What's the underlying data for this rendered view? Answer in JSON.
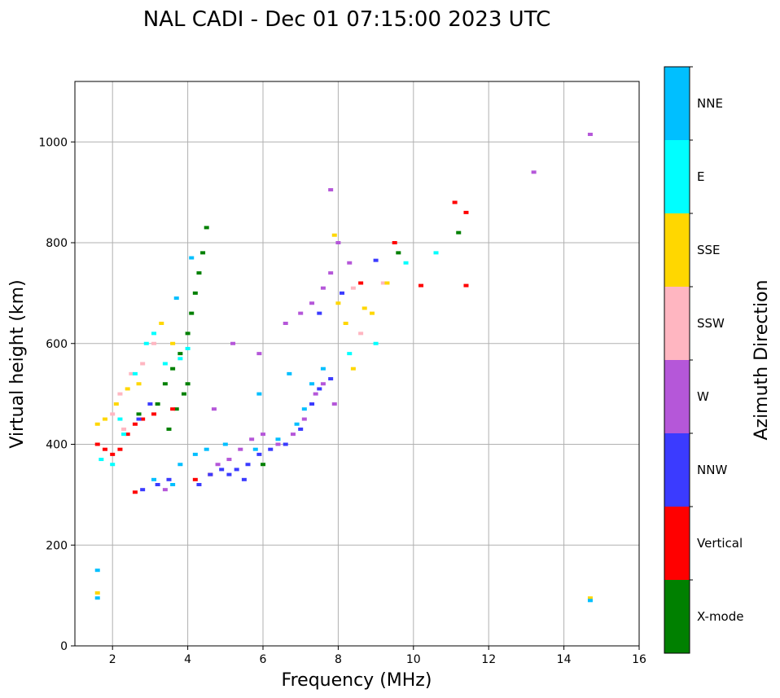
{
  "chart_data": {
    "type": "scatter",
    "title": "NAL CADI - Dec 01 07:15:00 2023 UTC",
    "xlabel": "Frequency (MHz)",
    "ylabel": "Virtual height (km)",
    "xlim": [
      1,
      16
    ],
    "ylim": [
      0,
      1120
    ],
    "x_ticks": [
      2,
      4,
      6,
      8,
      10,
      12,
      14,
      16
    ],
    "y_ticks": [
      0,
      200,
      400,
      600,
      800,
      1000
    ],
    "grid": true,
    "colorbar": {
      "title": "Azimuth Direction",
      "categories": [
        {
          "name": "X-mode",
          "color": "#008000"
        },
        {
          "name": "Vertical",
          "color": "#ff0000"
        },
        {
          "name": "NNW",
          "color": "#3b3bff"
        },
        {
          "name": "W",
          "color": "#b557d9"
        },
        {
          "name": "SSW",
          "color": "#ffb6c1"
        },
        {
          "name": "SSE",
          "color": "#ffd700"
        },
        {
          "name": "E",
          "color": "#00ffff"
        },
        {
          "name": "NNE",
          "color": "#00bfff"
        }
      ]
    },
    "series": [
      {
        "name": "X-mode",
        "points": [
          [
            3.2,
            480
          ],
          [
            3.4,
            520
          ],
          [
            3.6,
            550
          ],
          [
            3.8,
            580
          ],
          [
            3.9,
            500
          ],
          [
            4.0,
            620
          ],
          [
            4.1,
            660
          ],
          [
            4.2,
            700
          ],
          [
            4.3,
            740
          ],
          [
            4.4,
            780
          ],
          [
            3.5,
            430
          ],
          [
            3.7,
            470
          ],
          [
            4.0,
            520
          ],
          [
            4.5,
            830
          ],
          [
            6.0,
            360
          ],
          [
            9.6,
            780
          ],
          [
            11.2,
            820
          ],
          [
            2.7,
            460
          ]
        ]
      },
      {
        "name": "Vertical",
        "points": [
          [
            1.6,
            400
          ],
          [
            1.8,
            390
          ],
          [
            2.0,
            380
          ],
          [
            2.2,
            390
          ],
          [
            2.4,
            420
          ],
          [
            2.6,
            440
          ],
          [
            2.8,
            450
          ],
          [
            3.1,
            460
          ],
          [
            3.6,
            470
          ],
          [
            4.2,
            330
          ],
          [
            4.6,
            340
          ],
          [
            2.6,
            305
          ],
          [
            8.6,
            720
          ],
          [
            9.5,
            800
          ],
          [
            10.2,
            715
          ],
          [
            11.1,
            880
          ],
          [
            11.4,
            860
          ],
          [
            11.4,
            715
          ]
        ]
      },
      {
        "name": "NNW",
        "points": [
          [
            4.3,
            320
          ],
          [
            4.6,
            340
          ],
          [
            4.9,
            350
          ],
          [
            5.1,
            340
          ],
          [
            5.3,
            350
          ],
          [
            5.5,
            330
          ],
          [
            5.6,
            360
          ],
          [
            5.9,
            380
          ],
          [
            6.2,
            390
          ],
          [
            6.6,
            400
          ],
          [
            7.0,
            430
          ],
          [
            7.3,
            480
          ],
          [
            7.5,
            510
          ],
          [
            7.8,
            530
          ],
          [
            2.8,
            310
          ],
          [
            3.2,
            320
          ],
          [
            3.5,
            330
          ],
          [
            3.0,
            480
          ],
          [
            2.7,
            450
          ],
          [
            8.1,
            700
          ],
          [
            9.0,
            765
          ],
          [
            7.5,
            660
          ]
        ]
      },
      {
        "name": "W",
        "points": [
          [
            4.8,
            360
          ],
          [
            5.1,
            370
          ],
          [
            5.4,
            390
          ],
          [
            5.7,
            410
          ],
          [
            6.0,
            420
          ],
          [
            6.4,
            400
          ],
          [
            6.8,
            420
          ],
          [
            7.1,
            450
          ],
          [
            7.4,
            500
          ],
          [
            7.6,
            520
          ],
          [
            7.9,
            480
          ],
          [
            6.6,
            640
          ],
          [
            7.0,
            660
          ],
          [
            7.3,
            680
          ],
          [
            7.6,
            710
          ],
          [
            7.8,
            740
          ],
          [
            8.3,
            760
          ],
          [
            3.4,
            310
          ],
          [
            4.7,
            470
          ],
          [
            5.2,
            600
          ],
          [
            5.9,
            580
          ],
          [
            13.2,
            940
          ],
          [
            14.7,
            1015
          ],
          [
            7.8,
            905
          ],
          [
            8.0,
            800
          ]
        ]
      },
      {
        "name": "SSW",
        "points": [
          [
            2.2,
            500
          ],
          [
            2.5,
            540
          ],
          [
            2.8,
            560
          ],
          [
            3.1,
            600
          ],
          [
            2.0,
            460
          ],
          [
            2.3,
            430
          ],
          [
            8.4,
            710
          ],
          [
            9.2,
            720
          ],
          [
            8.6,
            620
          ]
        ]
      },
      {
        "name": "SSE",
        "points": [
          [
            1.6,
            440
          ],
          [
            1.8,
            450
          ],
          [
            2.1,
            480
          ],
          [
            2.4,
            510
          ],
          [
            2.7,
            520
          ],
          [
            3.3,
            640
          ],
          [
            3.6,
            600
          ],
          [
            8.0,
            680
          ],
          [
            8.2,
            640
          ],
          [
            8.7,
            670
          ],
          [
            8.9,
            660
          ],
          [
            9.3,
            720
          ],
          [
            8.4,
            550
          ],
          [
            1.6,
            105
          ],
          [
            14.7,
            95
          ],
          [
            7.9,
            815
          ]
        ]
      },
      {
        "name": "E",
        "points": [
          [
            2.2,
            450
          ],
          [
            2.6,
            540
          ],
          [
            2.9,
            600
          ],
          [
            3.1,
            620
          ],
          [
            3.4,
            560
          ],
          [
            3.8,
            570
          ],
          [
            4.0,
            590
          ],
          [
            1.7,
            370
          ],
          [
            2.0,
            360
          ],
          [
            2.3,
            420
          ],
          [
            9.0,
            600
          ],
          [
            9.8,
            760
          ],
          [
            10.6,
            780
          ],
          [
            8.3,
            580
          ]
        ]
      },
      {
        "name": "NNE",
        "points": [
          [
            3.8,
            360
          ],
          [
            4.2,
            380
          ],
          [
            4.5,
            390
          ],
          [
            5.0,
            400
          ],
          [
            5.8,
            390
          ],
          [
            6.4,
            410
          ],
          [
            6.9,
            440
          ],
          [
            7.1,
            470
          ],
          [
            7.3,
            520
          ],
          [
            7.6,
            550
          ],
          [
            3.6,
            320
          ],
          [
            3.1,
            330
          ],
          [
            1.6,
            150
          ],
          [
            1.6,
            95
          ],
          [
            4.1,
            770
          ],
          [
            3.7,
            690
          ],
          [
            6.7,
            540
          ],
          [
            5.9,
            500
          ],
          [
            14.7,
            90
          ]
        ]
      }
    ]
  }
}
